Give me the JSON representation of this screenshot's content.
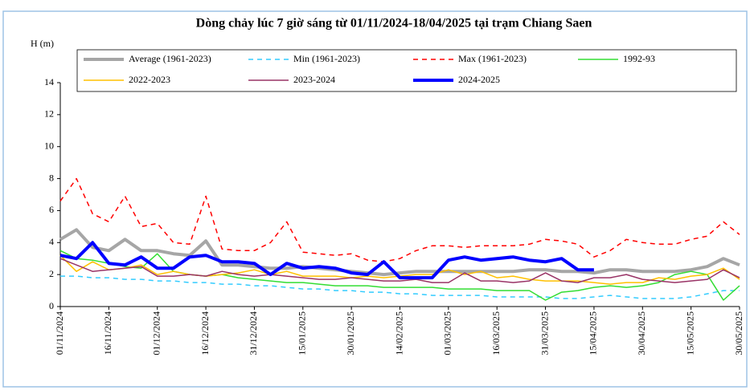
{
  "chart_data": {
    "type": "line",
    "title": "Dòng chảy lúc 7 giờ sáng từ 01/11/2024-18/04/2025 tại trạm Chiang Saen",
    "y_label": "H (m)",
    "x": [
      "01/11/2024",
      "06/11/2024",
      "11/11/2024",
      "16/11/2024",
      "21/11/2024",
      "26/11/2024",
      "01/12/2024",
      "06/12/2024",
      "11/12/2024",
      "16/12/2024",
      "21/12/2024",
      "26/12/2024",
      "31/12/2024",
      "05/01/2025",
      "10/01/2025",
      "15/01/2025",
      "20/01/2025",
      "25/01/2025",
      "30/01/2025",
      "04/02/2025",
      "09/02/2025",
      "14/02/2025",
      "19/02/2025",
      "24/02/2025",
      "01/03/2025",
      "06/03/2025",
      "11/03/2025",
      "16/03/2025",
      "21/03/2025",
      "26/03/2025",
      "31/03/2025",
      "05/04/2025",
      "10/04/2025",
      "15/04/2025",
      "20/04/2025",
      "25/04/2025",
      "30/04/2025",
      "05/05/2025",
      "10/05/2025",
      "15/05/2025",
      "20/05/2025",
      "25/05/2025",
      "30/05/2025"
    ],
    "xticks": [
      "01/11/2024",
      "16/11/2024",
      "01/12/2024",
      "16/12/2024",
      "31/12/2024",
      "15/01/2025",
      "30/01/2025",
      "14/02/2025",
      "01/03/2025",
      "16/03/2025",
      "31/03/2025",
      "15/04/2025",
      "30/04/2025",
      "15/05/2025",
      "30/05/2025"
    ],
    "ylim": [
      0,
      14
    ],
    "yticks": [
      0,
      2,
      4,
      6,
      8,
      10,
      12,
      14
    ],
    "grid": false,
    "series": [
      {
        "name": "Average (1961-2023)",
        "color": "#a6a6a6",
        "linewidth": 4,
        "linestyle": "solid",
        "values": [
          4.2,
          4.8,
          3.7,
          3.5,
          4.2,
          3.5,
          3.5,
          3.3,
          3.2,
          4.1,
          2.6,
          2.6,
          2.5,
          2.4,
          2.4,
          2.5,
          2.4,
          2.3,
          2.2,
          2.1,
          2.0,
          2.1,
          2.2,
          2.2,
          2.2,
          2.2,
          2.2,
          2.2,
          2.2,
          2.3,
          2.3,
          2.2,
          2.2,
          2.1,
          2.3,
          2.3,
          2.2,
          2.2,
          2.2,
          2.3,
          2.5,
          3.0,
          2.6
        ]
      },
      {
        "name": "Min (1961-2023)",
        "color": "#33ccff",
        "linewidth": 1.5,
        "linestyle": "dashed",
        "values": [
          1.9,
          1.9,
          1.8,
          1.8,
          1.7,
          1.7,
          1.6,
          1.6,
          1.5,
          1.5,
          1.4,
          1.4,
          1.3,
          1.3,
          1.2,
          1.1,
          1.1,
          1.0,
          1.0,
          0.9,
          0.9,
          0.8,
          0.8,
          0.7,
          0.7,
          0.7,
          0.7,
          0.6,
          0.6,
          0.6,
          0.6,
          0.5,
          0.5,
          0.6,
          0.7,
          0.6,
          0.5,
          0.5,
          0.5,
          0.6,
          0.8,
          1.0,
          1.0
        ]
      },
      {
        "name": "Max (1961-2023)",
        "color": "#ff0000",
        "linewidth": 1.5,
        "linestyle": "dashed",
        "values": [
          6.6,
          8.0,
          5.8,
          5.3,
          6.9,
          5.0,
          5.2,
          4.0,
          3.9,
          6.9,
          3.6,
          3.5,
          3.5,
          4.0,
          5.3,
          3.4,
          3.3,
          3.2,
          3.3,
          2.9,
          2.8,
          3.0,
          3.5,
          3.8,
          3.8,
          3.7,
          3.8,
          3.8,
          3.8,
          3.9,
          4.2,
          4.1,
          3.9,
          3.1,
          3.5,
          4.2,
          4.0,
          3.9,
          3.9,
          4.2,
          4.4,
          5.3,
          4.5
        ]
      },
      {
        "name": "1992-93",
        "color": "#33dd33",
        "linewidth": 1.5,
        "linestyle": "solid",
        "values": [
          3.5,
          3.0,
          2.9,
          2.7,
          2.5,
          2.4,
          3.3,
          2.2,
          2.0,
          1.9,
          2.0,
          1.8,
          1.7,
          1.6,
          1.5,
          1.5,
          1.4,
          1.3,
          1.3,
          1.3,
          1.2,
          1.2,
          1.2,
          1.2,
          1.1,
          1.1,
          1.1,
          1.0,
          1.0,
          1.0,
          0.4,
          0.9,
          1.0,
          1.2,
          1.3,
          1.2,
          1.3,
          1.5,
          2.0,
          2.2,
          2.0,
          0.4,
          1.3
        ]
      },
      {
        "name": "2022-2023",
        "color": "#ffc000",
        "linewidth": 1.5,
        "linestyle": "solid",
        "values": [
          3.2,
          2.2,
          2.8,
          2.3,
          2.4,
          2.6,
          2.0,
          2.2,
          2.0,
          1.9,
          2.0,
          2.1,
          2.3,
          2.0,
          2.2,
          1.9,
          1.9,
          1.9,
          1.8,
          1.9,
          1.8,
          1.9,
          2.0,
          2.0,
          2.3,
          2.0,
          2.2,
          1.8,
          1.9,
          1.7,
          1.6,
          1.6,
          1.6,
          1.5,
          1.4,
          1.5,
          1.5,
          1.8,
          1.7,
          1.9,
          2.0,
          2.4,
          1.7
        ]
      },
      {
        "name": "2023-2024",
        "color": "#993366",
        "linewidth": 1.5,
        "linestyle": "solid",
        "values": [
          3.0,
          2.6,
          2.2,
          2.3,
          2.4,
          2.5,
          1.9,
          1.9,
          2.0,
          1.9,
          2.2,
          2.0,
          1.9,
          2.0,
          1.9,
          1.8,
          1.7,
          1.7,
          1.8,
          1.7,
          1.6,
          1.6,
          1.7,
          1.5,
          1.5,
          2.1,
          1.6,
          1.6,
          1.5,
          1.6,
          2.1,
          1.6,
          1.5,
          1.8,
          1.8,
          2.0,
          1.7,
          1.6,
          1.5,
          1.6,
          1.7,
          2.3,
          1.8
        ]
      },
      {
        "name": "2024-2025",
        "color": "#0000ff",
        "linewidth": 4,
        "linestyle": "solid",
        "values": [
          3.2,
          3.0,
          4.0,
          2.7,
          2.6,
          3.1,
          2.4,
          2.4,
          3.1,
          3.2,
          2.8,
          2.8,
          2.7,
          2.0,
          2.7,
          2.4,
          2.5,
          2.4,
          2.1,
          2.0,
          2.8,
          1.8,
          1.8,
          1.8,
          2.9,
          3.1,
          2.9,
          3.0,
          3.1,
          2.9,
          2.8,
          3.0,
          2.3,
          2.3,
          null,
          null,
          null,
          null,
          null,
          null,
          null,
          null,
          null
        ]
      }
    ]
  }
}
